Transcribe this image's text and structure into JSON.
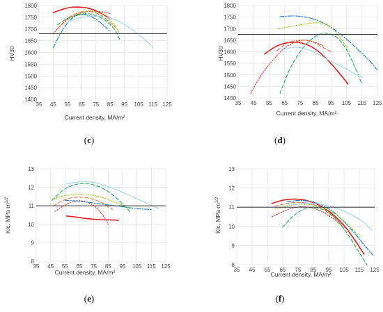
{
  "chart_data": [
    {
      "id": "c",
      "type": "line",
      "panel_label": "c",
      "xlabel": "Current density, MA/m²",
      "ylabel": "HV30",
      "xlim": [
        35,
        125
      ],
      "ylim": [
        1400,
        1800
      ],
      "xticks": [
        35,
        45,
        55,
        65,
        75,
        85,
        95,
        105,
        115,
        125
      ],
      "yticks": [
        1400,
        1450,
        1500,
        1550,
        1600,
        1650,
        1700,
        1750,
        1800
      ],
      "grid": true,
      "reference_line": 1680,
      "series": [
        {
          "color": "#e02020",
          "dash": "solid",
          "width": 1.6,
          "x": [
            45,
            52,
            58,
            64,
            70,
            76,
            82,
            85
          ],
          "y": [
            1770,
            1785,
            1793,
            1793,
            1788,
            1775,
            1755,
            1745
          ]
        },
        {
          "color": "#e03030",
          "dash": "dotted",
          "width": 1.1,
          "x": [
            45,
            52,
            58,
            64,
            70,
            76,
            82,
            85
          ],
          "y": [
            1680,
            1725,
            1752,
            1767,
            1775,
            1775,
            1770,
            1765
          ]
        },
        {
          "color": "#f07040",
          "dash": "dashed",
          "width": 1.1,
          "x": [
            48,
            55,
            62,
            68,
            74,
            80,
            86,
            90
          ],
          "y": [
            1700,
            1745,
            1768,
            1775,
            1770,
            1752,
            1722,
            1700
          ]
        },
        {
          "color": "#1e78c8",
          "dash": "dashdot",
          "width": 1.1,
          "x": [
            45,
            50,
            55,
            60,
            66,
            72,
            78,
            85
          ],
          "y": [
            1620,
            1680,
            1725,
            1753,
            1762,
            1752,
            1728,
            1690
          ]
        },
        {
          "color": "#30b060",
          "dash": "dashed",
          "width": 1.2,
          "x": [
            48,
            55,
            62,
            69,
            76,
            83,
            89,
            92
          ],
          "y": [
            1718,
            1745,
            1760,
            1765,
            1755,
            1730,
            1690,
            1650
          ]
        },
        {
          "color": "#a0c820",
          "dash": "dotted",
          "width": 1.1,
          "x": [
            55,
            62,
            68,
            74,
            80,
            86,
            92
          ],
          "y": [
            1740,
            1765,
            1776,
            1775,
            1760,
            1730,
            1680
          ]
        },
        {
          "color": "#a8d4f0",
          "dash": "solid",
          "width": 1.2,
          "x": [
            52,
            62,
            72,
            82,
            92,
            102,
            112,
            115
          ],
          "y": [
            1720,
            1745,
            1755,
            1750,
            1730,
            1690,
            1640,
            1620
          ]
        }
      ]
    },
    {
      "id": "d",
      "type": "line",
      "panel_label": "d",
      "xlabel": "Current density,  MA/m²",
      "ylabel": "HV30",
      "xlim": [
        35,
        125
      ],
      "ylim": [
        1400,
        1800
      ],
      "xticks": [
        35,
        45,
        55,
        65,
        75,
        85,
        95,
        105,
        115,
        125
      ],
      "yticks": [
        1400,
        1450,
        1500,
        1550,
        1600,
        1650,
        1700,
        1750,
        1800
      ],
      "grid": true,
      "reference_line": 1675,
      "series": [
        {
          "color": "#e02020",
          "dash": "solid",
          "width": 1.6,
          "x": [
            52,
            60,
            68,
            76,
            84,
            92,
            100,
            106
          ],
          "y": [
            1590,
            1625,
            1640,
            1638,
            1615,
            1570,
            1510,
            1460
          ]
        },
        {
          "color": "#e03030",
          "dash": "dotted",
          "width": 1.1,
          "x": [
            43,
            50,
            57,
            64,
            71,
            78,
            85,
            90
          ],
          "y": [
            1420,
            1500,
            1560,
            1610,
            1640,
            1650,
            1640,
            1625
          ]
        },
        {
          "color": "#f07040",
          "dash": "dashed",
          "width": 1.1,
          "x": [
            60,
            66,
            72,
            78,
            84,
            90,
            95
          ],
          "y": [
            1605,
            1635,
            1648,
            1650,
            1640,
            1618,
            1600
          ]
        },
        {
          "color": "#1e78c8",
          "dash": "dashdot",
          "width": 1.1,
          "x": [
            62,
            72,
            82,
            92,
            102,
            112,
            120,
            125
          ],
          "y": [
            1752,
            1755,
            1745,
            1718,
            1672,
            1612,
            1560,
            1520
          ]
        },
        {
          "color": "#30b060",
          "dash": "dashed",
          "width": 1.2,
          "x": [
            62,
            68,
            74,
            80,
            86,
            92,
            98,
            104,
            110,
            115
          ],
          "y": [
            1420,
            1520,
            1590,
            1640,
            1670,
            1680,
            1665,
            1620,
            1540,
            1460
          ]
        },
        {
          "color": "#a0c820",
          "dash": "dotted",
          "width": 1.1,
          "x": [
            60,
            68,
            76,
            84,
            90,
            96,
            102,
            107
          ],
          "y": [
            1700,
            1708,
            1718,
            1725,
            1722,
            1700,
            1650,
            1600
          ]
        },
        {
          "color": "#a8d4f0",
          "dash": "solid",
          "width": 1.2,
          "x": [
            64,
            72,
            80,
            88,
            96,
            104,
            110,
            116
          ],
          "y": [
            1610,
            1620,
            1610,
            1585,
            1555,
            1530,
            1505,
            1490
          ]
        }
      ]
    },
    {
      "id": "e",
      "type": "line",
      "panel_label": "e",
      "xlabel": "Current density, MA/m²",
      "ylabel": "Klc, MPa·m",
      "ylabel_sup": "1/2",
      "xlim": [
        35,
        125
      ],
      "ylim": [
        8,
        13
      ],
      "xticks": [
        35,
        45,
        55,
        65,
        75,
        85,
        95,
        105,
        115,
        125
      ],
      "yticks": [
        8,
        9,
        10,
        11,
        12,
        13
      ],
      "grid": true,
      "reference_line": 11.0,
      "series": [
        {
          "color": "#e02020",
          "dash": "solid",
          "width": 1.6,
          "x": [
            56,
            62,
            68,
            74,
            80,
            86,
            92
          ],
          "y": [
            10.45,
            10.4,
            10.33,
            10.28,
            10.25,
            10.24,
            10.22
          ]
        },
        {
          "color": "#e03030",
          "dash": "dotted",
          "width": 1.1,
          "x": [
            48,
            53,
            58,
            63,
            68,
            73,
            78,
            83,
            85
          ],
          "y": [
            10.7,
            10.95,
            11.15,
            11.27,
            11.25,
            11.1,
            10.8,
            10.3,
            10.0
          ]
        },
        {
          "color": "#f07040",
          "dash": "dashed",
          "width": 1.1,
          "x": [
            47,
            54,
            61,
            68,
            75,
            82,
            88
          ],
          "y": [
            11.0,
            11.3,
            11.45,
            11.45,
            11.35,
            11.1,
            10.8
          ]
        },
        {
          "color": "#1e78c8",
          "dash": "dashdot",
          "width": 1.1,
          "x": [
            55,
            65,
            75,
            85,
            95,
            105,
            115
          ],
          "y": [
            11.3,
            11.25,
            11.15,
            11.05,
            10.95,
            10.85,
            10.8
          ]
        },
        {
          "color": "#30b060",
          "dash": "dashed",
          "width": 1.2,
          "x": [
            46,
            53,
            60,
            67,
            74,
            81,
            88,
            95,
            100
          ],
          "y": [
            11.3,
            11.8,
            12.1,
            12.2,
            12.15,
            11.95,
            11.6,
            11.1,
            10.7
          ]
        },
        {
          "color": "#a0c820",
          "dash": "dotted",
          "width": 1.1,
          "x": [
            46,
            55,
            64,
            73,
            82,
            91,
            100
          ],
          "y": [
            11.35,
            11.55,
            11.62,
            11.58,
            11.42,
            11.15,
            10.85
          ]
        },
        {
          "color": "#a8d4f0",
          "dash": "solid",
          "width": 1.2,
          "x": [
            56,
            66,
            76,
            86,
            96,
            106,
            116,
            120
          ],
          "y": [
            12.2,
            12.3,
            12.25,
            12.0,
            11.7,
            11.35,
            11.0,
            10.85
          ]
        }
      ]
    },
    {
      "id": "f",
      "type": "line",
      "panel_label": "f",
      "xlabel": "Current density,  MA/m²",
      "ylabel": "Klc, MPa·m",
      "ylabel_sup": "1/2",
      "xlim": [
        35,
        125
      ],
      "ylim": [
        8,
        13
      ],
      "xticks": [
        35,
        45,
        55,
        65,
        75,
        85,
        95,
        105,
        115,
        125
      ],
      "yticks": [
        8,
        9,
        10,
        11,
        12,
        13
      ],
      "grid": true,
      "reference_line": 11.0,
      "series": [
        {
          "color": "#e02020",
          "dash": "solid",
          "width": 1.6,
          "x": [
            58,
            66,
            74,
            82,
            90,
            98,
            106,
            114,
            118
          ],
          "y": [
            11.2,
            11.38,
            11.42,
            11.32,
            11.05,
            10.6,
            9.95,
            9.05,
            8.55
          ]
        },
        {
          "color": "#e03030",
          "dash": "dotted",
          "width": 1.1,
          "x": [
            58,
            66,
            74,
            82,
            90,
            98,
            104
          ],
          "y": [
            10.5,
            10.8,
            11.0,
            11.0,
            10.8,
            10.4,
            10.0
          ]
        },
        {
          "color": "#f07040",
          "dash": "dashed",
          "width": 1.1,
          "x": [
            60,
            68,
            76,
            84,
            92,
            100,
            106
          ],
          "y": [
            11.05,
            11.2,
            11.25,
            11.15,
            10.9,
            10.4,
            9.9
          ]
        },
        {
          "color": "#1e78c8",
          "dash": "dashdot",
          "width": 1.1,
          "x": [
            68,
            78,
            88,
            98,
            108,
            118,
            124
          ],
          "y": [
            11.3,
            11.35,
            11.2,
            10.75,
            10.0,
            9.05,
            8.5
          ]
        },
        {
          "color": "#30b060",
          "dash": "dashed",
          "width": 1.2,
          "x": [
            65,
            72,
            79,
            86,
            93,
            100,
            107,
            114,
            120
          ],
          "y": [
            9.95,
            10.55,
            10.9,
            10.98,
            10.8,
            10.35,
            9.65,
            8.75,
            8.0
          ]
        },
        {
          "color": "#a0c820",
          "dash": "dotted",
          "width": 1.1,
          "x": [
            60,
            70,
            80,
            90,
            100,
            110,
            115
          ],
          "y": [
            10.9,
            11.1,
            11.15,
            11.0,
            10.6,
            9.9,
            9.45
          ]
        },
        {
          "color": "#a8d4f0",
          "dash": "solid",
          "width": 1.2,
          "x": [
            70,
            80,
            90,
            100,
            110,
            118,
            123
          ],
          "y": [
            11.1,
            11.2,
            11.15,
            10.95,
            10.6,
            10.2,
            9.8
          ]
        }
      ]
    }
  ],
  "layout_style": {
    "grid_color": "#d9d9d9",
    "reference_line_color": "#404040"
  }
}
